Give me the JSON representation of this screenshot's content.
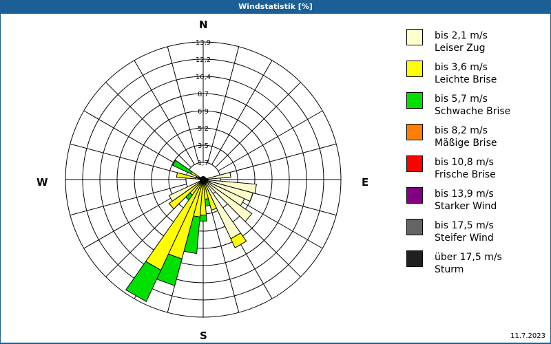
{
  "header": {
    "title": "Windstatistik [%]"
  },
  "compass": {
    "n": "N",
    "e": "E",
    "s": "S",
    "w": "W"
  },
  "footer": {
    "date": "11.7.2023"
  },
  "legend": [
    {
      "range": "bis 2,1 m/s",
      "name": "Leiser Zug",
      "color": "#ffffcc"
    },
    {
      "range": "bis 3,6 m/s",
      "name": "Leichte Brise",
      "color": "#ffff00"
    },
    {
      "range": "bis 5,7 m/s",
      "name": "Schwache Brise",
      "color": "#00e000"
    },
    {
      "range": "bis 8,2 m/s",
      "name": "Mäßige Brise",
      "color": "#ff8000"
    },
    {
      "range": "bis 10,8 m/s",
      "name": "Frische Brise",
      "color": "#ff0000"
    },
    {
      "range": "bis 13,9 m/s",
      "name": "Starker Wind",
      "color": "#800080"
    },
    {
      "range": "bis 17,5 m/s",
      "name": "Steifer Wind",
      "color": "#646464"
    },
    {
      "range": "über 17,5 m/s",
      "name": "Sturm",
      "color": "#202020"
    }
  ],
  "chart_data": {
    "type": "wind-rose",
    "title": "Windstatistik [%]",
    "unit": "%",
    "ring_labels": [
      "1,7",
      "3,5",
      "5,2",
      "6,9",
      "8,7",
      "10,4",
      "12,2",
      "13,9"
    ],
    "rmax": 13.9,
    "sector_width_deg": 10,
    "series_names": [
      "bis 2,1 m/s",
      "bis 3,6 m/s",
      "bis 5,7 m/s"
    ],
    "directions": [
      {
        "deg": 80,
        "values": [
          2.8,
          0,
          0
        ]
      },
      {
        "deg": 100,
        "values": [
          5.4,
          0,
          0
        ]
      },
      {
        "deg": 110,
        "values": [
          5.2,
          0,
          0
        ]
      },
      {
        "deg": 120,
        "values": [
          4.6,
          0,
          0
        ]
      },
      {
        "deg": 130,
        "values": [
          6.0,
          0,
          0
        ]
      },
      {
        "deg": 150,
        "values": [
          6.6,
          1.0,
          0
        ]
      },
      {
        "deg": 160,
        "values": [
          0,
          3.2,
          0
        ]
      },
      {
        "deg": 170,
        "values": [
          0,
          2.0,
          0.7
        ]
      },
      {
        "deg": 180,
        "values": [
          0,
          3.6,
          0.6
        ]
      },
      {
        "deg": 190,
        "values": [
          0,
          3.8,
          3.7
        ]
      },
      {
        "deg": 200,
        "values": [
          0,
          8.3,
          2.8
        ]
      },
      {
        "deg": 210,
        "values": [
          0,
          10.1,
          3.5
        ]
      },
      {
        "deg": 220,
        "values": [
          0,
          1.9,
          0.6
        ]
      },
      {
        "deg": 230,
        "values": [
          0,
          4.2,
          0
        ]
      },
      {
        "deg": 240,
        "values": [
          3.8,
          0,
          0
        ]
      },
      {
        "deg": 280,
        "values": [
          0.8,
          1.9,
          0
        ]
      },
      {
        "deg": 290,
        "values": [
          0,
          0.7,
          0
        ]
      },
      {
        "deg": 300,
        "values": [
          0,
          1.4,
          2.0
        ]
      }
    ]
  }
}
